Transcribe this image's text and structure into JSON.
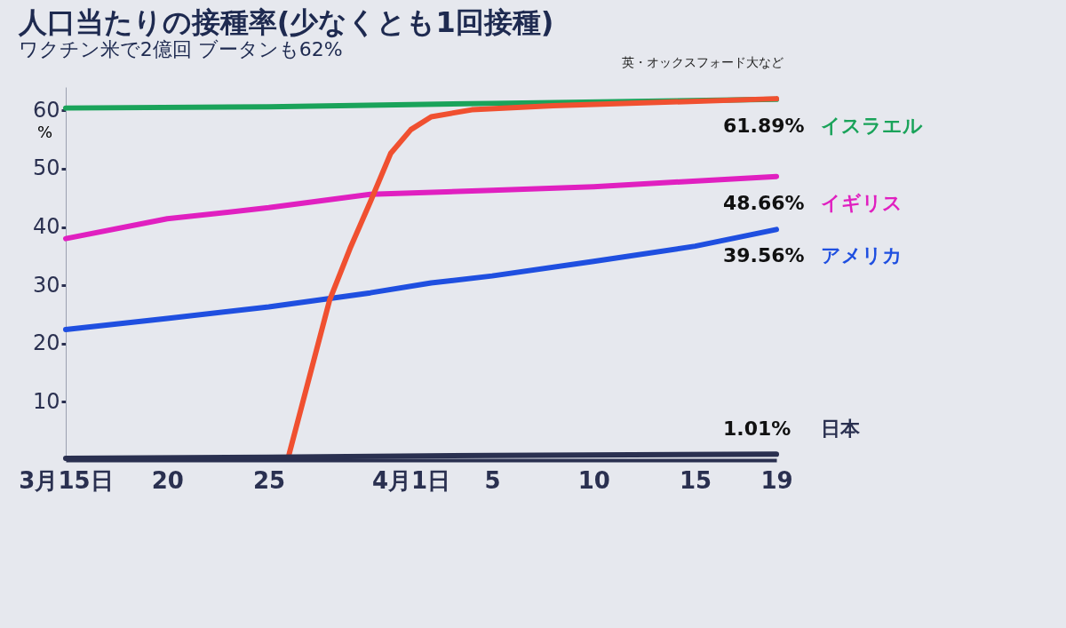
{
  "chart_data": {
    "type": "line",
    "title": "人口当たりの接種率(少なくとも1回接種)",
    "subtitle": "ワクチン米で2億回 ブータンも62%",
    "annotations": [
      "英・オックスフォード大など"
    ],
    "ylabel": "%",
    "xlim": [
      "--03-15",
      "--04-19"
    ],
    "xticks": [
      {
        "value": "--03-15",
        "label": "3月15日"
      },
      {
        "value": "--03-20",
        "label": "20"
      },
      {
        "value": "--03-25",
        "label": "25"
      },
      {
        "value": "--04-01",
        "label": "4月1日"
      },
      {
        "value": "--04-05",
        "label": "5"
      },
      {
        "value": "--04-10",
        "label": "10"
      },
      {
        "value": "--04-15",
        "label": "15"
      },
      {
        "value": "--04-19",
        "label": "19"
      }
    ],
    "ylim": [
      0,
      64
    ],
    "yticks": [
      10,
      20,
      30,
      40,
      50,
      60
    ],
    "grid": false,
    "legend": false,
    "marker": "none",
    "line_style": "solid",
    "series": [
      {
        "name": "イスラエル",
        "color": "#1aa35a",
        "x": [
          "--03-15",
          "--03-25",
          "--04-05",
          "--04-19"
        ],
        "values": [
          60.4,
          60.6,
          61.2,
          61.89
        ],
        "value_labels": [
          null,
          null,
          null,
          "61.89%"
        ]
      },
      {
        "name": "イギリス",
        "color": "#e020c0",
        "x": [
          "--03-15",
          "--03-20",
          "--03-25",
          "--03-30",
          "--04-05",
          "--04-10",
          "--04-19"
        ],
        "values": [
          38.0,
          41.4,
          43.3,
          45.6,
          46.3,
          46.9,
          48.66
        ],
        "value_labels": [
          null,
          null,
          null,
          null,
          null,
          null,
          "48.66%"
        ]
      },
      {
        "name": "アメリカ",
        "color": "#1f4fe0",
        "x": [
          "--03-15",
          "--03-20",
          "--03-25",
          "--03-30",
          "--04-02",
          "--04-05",
          "--04-10",
          "--04-15",
          "--04-19"
        ],
        "values": [
          22.4,
          24.3,
          26.3,
          28.7,
          30.4,
          31.6,
          34.1,
          36.7,
          39.56
        ],
        "value_labels": [
          null,
          null,
          null,
          null,
          null,
          null,
          null,
          null,
          "39.56%"
        ]
      },
      {
        "color": "#f05030",
        "x": [
          "--03-26",
          "--03-28",
          "--03-29",
          "--03-30",
          "--03-31",
          "--04-01",
          "--04-02",
          "--04-04",
          "--04-08",
          "--04-19"
        ],
        "values": [
          1.0,
          27.5,
          36.3,
          44.3,
          52.6,
          56.7,
          58.9,
          60.1,
          60.8,
          62.0
        ]
      },
      {
        "name": "日本",
        "color": "#2a3050",
        "x": [
          "--03-15",
          "--03-25",
          "--04-05",
          "--04-19"
        ],
        "values": [
          0.3,
          0.5,
          0.8,
          1.01
        ],
        "value_labels": [
          null,
          null,
          null,
          "1.01%"
        ]
      }
    ]
  }
}
